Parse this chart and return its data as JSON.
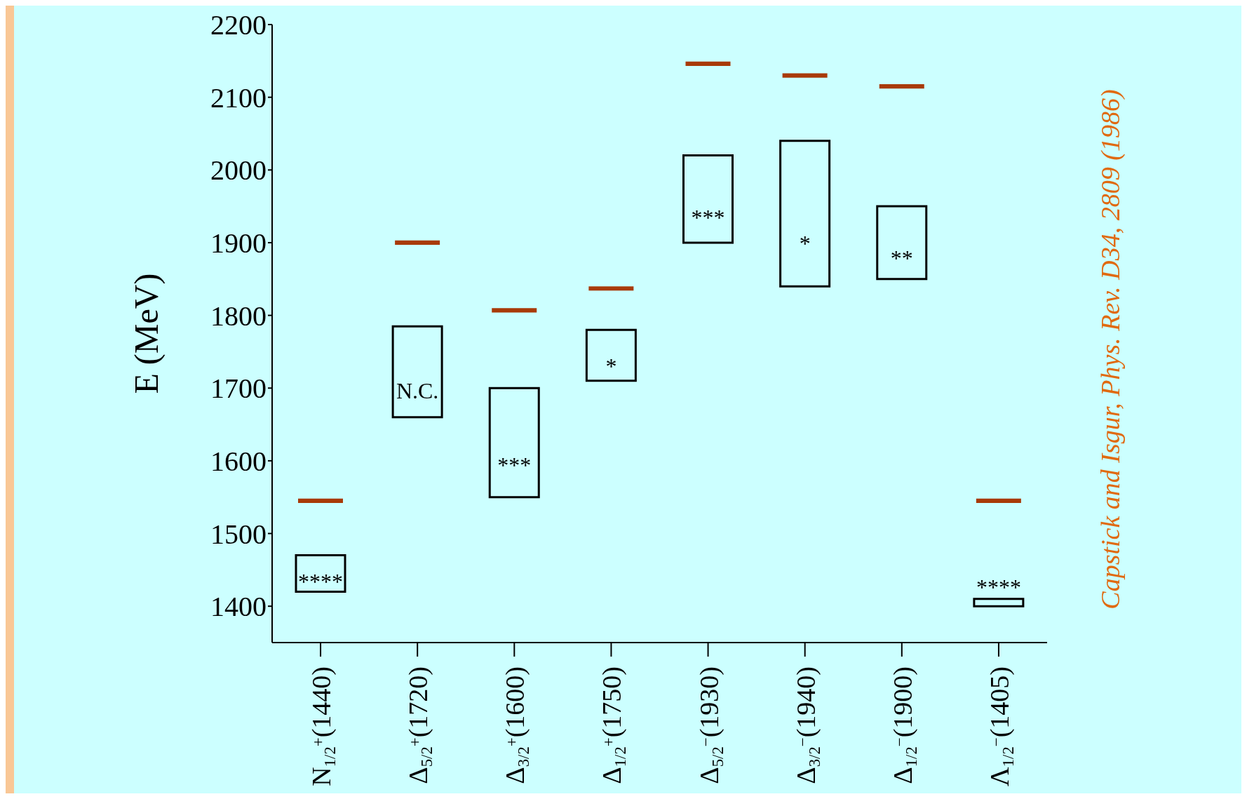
{
  "chart_data": {
    "type": "bar",
    "ylabel": "E (MeV)",
    "ylim": [
      1350,
      2200
    ],
    "yticks": [
      1400,
      1500,
      1600,
      1700,
      1800,
      1900,
      2000,
      2100,
      2200
    ],
    "grid": false,
    "categories": [
      "N$_{1/2}$$^{+}$(1440)",
      "Δ$_{5/2}$$^{+}$(1720)",
      "Δ$_{3/2}$$^{+}$(1600)",
      "Δ$_{1/2}$$^{+}$(1750)",
      "Δ$_{5/2}$$^{−}$(1930)",
      "Δ$_{3/2}$$^{−}$(1940)",
      "Δ$_{1/2}$$^{−}$(1900)",
      "Λ$_{1/2}$$^{−}$(1405)"
    ],
    "series": [
      {
        "color": "#000000",
        "base": [
          1420,
          1660,
          1550,
          1710,
          1900,
          1840,
          1850,
          1400
        ],
        "values": [
          50,
          125,
          150,
          70,
          120,
          200,
          100,
          10
        ],
        "value_labels": [
          "****",
          "N.C.",
          "***",
          "*",
          "***",
          "*",
          "**",
          "****"
        ]
      },
      {
        "color": "#a83a08",
        "base": [
          1542,
          1897,
          1804,
          1834,
          2143,
          2127,
          2112,
          1542
        ],
        "values": [
          6,
          6,
          6,
          6,
          6,
          6,
          6,
          6
        ]
      }
    ],
    "annotations": [
      "Capstick and Isgur, Phys. Rev. D34, 2809 (1986)"
    ]
  }
}
